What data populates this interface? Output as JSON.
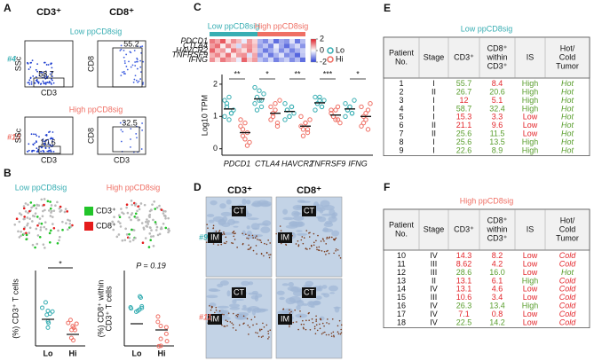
{
  "panel_labels": [
    "A",
    "B",
    "C",
    "D",
    "E",
    "F"
  ],
  "group_colors": [
    "#38aeb3",
    "#ef6f64"
  ],
  "panel_a": {
    "col_titles": [
      "CD3⁺",
      "CD8⁺"
    ],
    "groups": [
      {
        "title": "Low ppCD8sig",
        "sample": "#4"
      },
      {
        "title": "High ppCD8sig",
        "sample": "#15"
      }
    ],
    "plots": [
      {
        "y_label": "SSc",
        "x_label": "CD3",
        "gate": 58.7
      },
      {
        "y_label": "CD8",
        "gate": 55.2
      },
      {
        "y_label": "SSc",
        "x_label": "CD3",
        "gate": 10.6
      },
      {
        "y_label": "CD8",
        "x_label": "CD3",
        "gate": 32.5
      }
    ]
  },
  "panel_b": {
    "titles": [
      "Low ppCD8sig",
      "High ppCD8sig"
    ],
    "legend": [
      {
        "name": "CD3⁺",
        "color": "#22c42a"
      },
      {
        "name": "CD8⁺",
        "color": "#e51c1c"
      }
    ],
    "plots": [
      {
        "y_label": [
          "(%) CD3⁺ T cells"
        ],
        "note": "*",
        "categories": [
          "Lo",
          "Hi"
        ]
      },
      {
        "y_label": [
          "(%) CD8⁺ within",
          "CD3⁺ T cells"
        ],
        "note": "P = 0.19",
        "categories": [
          "Lo",
          "Hi"
        ]
      }
    ]
  },
  "panel_c": {
    "heatmap": {
      "groups": [
        "Low ppCD8sig",
        "High ppCD8sig"
      ],
      "rows": [
        "PDCD1",
        "CTLA4",
        "HAVCR2",
        "TNFRSF9",
        "IFNG"
      ],
      "values": [
        [
          1.2,
          0.8,
          1.5,
          0.3,
          1.0,
          0.6,
          -0.2,
          0.9,
          0.4,
          -0.8,
          -1.2,
          -0.5,
          -1.5,
          -0.9,
          -1.1,
          -0.3,
          -1.4,
          -0.7
        ],
        [
          0.9,
          1.3,
          0.2,
          1.1,
          0.5,
          -0.4,
          0.8,
          1.0,
          0.6,
          -1.0,
          -0.6,
          -1.3,
          -0.2,
          -0.9,
          -1.5,
          -0.8,
          -0.4,
          -1.1
        ],
        [
          1.4,
          0.6,
          0.9,
          -0.1,
          1.2,
          0.7,
          0.3,
          1.1,
          0.5,
          -0.7,
          -1.4,
          -0.9,
          -0.4,
          -1.2,
          -0.6,
          -1.3,
          -0.8,
          -0.5
        ],
        [
          0.7,
          1.1,
          0.4,
          1.3,
          0.2,
          0.9,
          1.0,
          -0.3,
          0.8,
          -1.1,
          -0.5,
          -1.4,
          -0.8,
          -0.3,
          -1.2,
          -0.9,
          -1.6,
          -0.6
        ],
        [
          1.0,
          0.3,
          1.2,
          0.8,
          0.6,
          -0.2,
          1.4,
          0.5,
          0.9,
          -0.6,
          -1.0,
          -0.4,
          -1.3,
          -0.8,
          -0.5,
          -1.2,
          -0.7,
          -1.5
        ]
      ],
      "clim": [
        -2,
        2
      ],
      "cticks": [
        2,
        0,
        -2
      ],
      "colors": [
        "#2b3fd6",
        "#ffffff",
        "#e0202a"
      ]
    },
    "plot": {
      "y_label": "Log10 TPM",
      "categories": [
        "PDCD1",
        "CTLA4",
        "HAVCR2",
        "TNFRSF9",
        "IFNG"
      ],
      "ylim": [
        -0.2,
        2.3
      ],
      "yticks": [
        0,
        1,
        2
      ],
      "significance": [
        "**",
        "*",
        "**",
        "***",
        "*"
      ],
      "series": [
        {
          "name": "Lo",
          "color": "#38aeb3",
          "values": [
            [
              1.5,
              1.3,
              1.6,
              1.1,
              1.2,
              1.0,
              1.4,
              0.9,
              1.1
            ],
            [
              1.9,
              1.6,
              1.5,
              1.3,
              1.7,
              1.4,
              1.2,
              1.8,
              1.5
            ],
            [
              1.4,
              1.2,
              1.0,
              1.3,
              1.1,
              0.9,
              1.2,
              1.0,
              1.3
            ],
            [
              1.6,
              1.4,
              1.5,
              1.3,
              1.5,
              1.2,
              1.4,
              1.6,
              1.3
            ],
            [
              1.4,
              1.2,
              1.3,
              1.1,
              1.5,
              1.0,
              1.2,
              1.3,
              1.1
            ]
          ]
        },
        {
          "name": "Hi",
          "color": "#ef6f64",
          "values": [
            [
              0.9,
              0.6,
              0.3,
              0.5,
              0.2,
              0.7,
              0.4,
              0.8,
              0.1
            ],
            [
              1.3,
              1.0,
              1.2,
              0.8,
              1.5,
              0.9,
              1.1,
              1.4,
              0.7
            ],
            [
              1.0,
              0.6,
              0.8,
              0.5,
              0.9,
              0.7,
              0.4,
              0.8,
              0.6
            ],
            [
              1.2,
              1.0,
              0.9,
              1.3,
              0.8,
              1.1,
              1.0,
              1.2,
              0.9
            ],
            [
              1.3,
              0.8,
              1.1,
              0.6,
              1.4,
              0.7,
              1.0,
              0.9,
              1.2
            ]
          ]
        }
      ]
    }
  },
  "panel_d": {
    "col_titles": [
      "CD3⁺",
      "CD8⁺"
    ],
    "samples": [
      "#9",
      "#11"
    ],
    "regions": [
      "CT",
      "IM"
    ]
  },
  "tables": [
    {
      "title": "Low ppCD8sig",
      "header": [
        [
          "Patient",
          "No."
        ],
        [
          "Stage"
        ],
        [
          "CD3⁺"
        ],
        [
          "CD8⁺",
          "within",
          "CD3⁺"
        ],
        [
          "IS"
        ],
        [
          "Hot/",
          "Cold",
          "Tumor"
        ]
      ],
      "rows": [
        [
          "1",
          "I",
          "55.7",
          "8.4",
          "High",
          "Hot"
        ],
        [
          "2",
          "II",
          "26.7",
          "20.6",
          "High",
          "Hot"
        ],
        [
          "3",
          "I",
          "12",
          "5.1",
          "High",
          "Hot"
        ],
        [
          "4",
          "I",
          "58.7",
          "32.4",
          "High",
          "Hot"
        ],
        [
          "5",
          "I",
          "15.3",
          "3.3",
          "Low",
          "Hot"
        ],
        [
          "6",
          "II",
          "21.1",
          "9.6",
          "Low",
          "Hot"
        ],
        [
          "7",
          "II",
          "25.6",
          "11.5",
          "Low",
          "Hot"
        ],
        [
          "8",
          "I",
          "25.6",
          "13.5",
          "High",
          "Hot"
        ],
        [
          "9",
          "I",
          "22.6",
          "8.9",
          "High",
          "Hot"
        ]
      ],
      "cell_colors": [
        [
          "#5a9e2e",
          "#e3262b",
          "#5a9e2e",
          "#5a9e2e"
        ],
        [
          "#5a9e2e",
          "#5a9e2e",
          "#5a9e2e",
          "#5a9e2e"
        ],
        [
          "#e3262b",
          "#e3262b",
          "#5a9e2e",
          "#5a9e2e"
        ],
        [
          "#5a9e2e",
          "#5a9e2e",
          "#5a9e2e",
          "#5a9e2e"
        ],
        [
          "#e3262b",
          "#e3262b",
          "#e3262b",
          "#5a9e2e"
        ],
        [
          "#e3262b",
          "#e3262b",
          "#e3262b",
          "#5a9e2e"
        ],
        [
          "#5a9e2e",
          "#5a9e2e",
          "#e3262b",
          "#5a9e2e"
        ],
        [
          "#5a9e2e",
          "#5a9e2e",
          "#5a9e2e",
          "#5a9e2e"
        ],
        [
          "#5a9e2e",
          "#5a9e2e",
          "#5a9e2e",
          "#5a9e2e"
        ]
      ]
    },
    {
      "title": "High ppCD8sig",
      "header": [
        [
          "Patient",
          "No."
        ],
        [
          "Stage"
        ],
        [
          "CD3⁺"
        ],
        [
          "CD8⁺",
          "within",
          "CD3⁺"
        ],
        [
          "IS"
        ],
        [
          "Hot/",
          "Cold",
          "Tumor"
        ]
      ],
      "rows": [
        [
          "10",
          "IV",
          "14.3",
          "8.2",
          "Low",
          "Cold"
        ],
        [
          "11",
          "III",
          "8.62",
          "4.2",
          "Low",
          "Cold"
        ],
        [
          "12",
          "III",
          "28.6",
          "16.0",
          "Low",
          "Hot"
        ],
        [
          "13",
          "II",
          "13.1",
          "6.1",
          "High",
          "Cold"
        ],
        [
          "14",
          "IV",
          "13.1",
          "4.6",
          "Low",
          "Cold"
        ],
        [
          "15",
          "III",
          "10.6",
          "3.4",
          "Low",
          "Cold"
        ],
        [
          "16",
          "IV",
          "26.3",
          "13.4",
          "High",
          "Cold"
        ],
        [
          "17",
          "IV",
          "7.1",
          "0.8",
          "Low",
          "Cold"
        ],
        [
          "18",
          "IV",
          "22.5",
          "14.2",
          "Low",
          "Cold"
        ]
      ],
      "cell_colors": [
        [
          "#e3262b",
          "#e3262b",
          "#e3262b",
          "#e3262b"
        ],
        [
          "#e3262b",
          "#e3262b",
          "#e3262b",
          "#e3262b"
        ],
        [
          "#5a9e2e",
          "#5a9e2e",
          "#e3262b",
          "#5a9e2e"
        ],
        [
          "#e3262b",
          "#e3262b",
          "#5a9e2e",
          "#e3262b"
        ],
        [
          "#e3262b",
          "#e3262b",
          "#e3262b",
          "#e3262b"
        ],
        [
          "#e3262b",
          "#e3262b",
          "#e3262b",
          "#e3262b"
        ],
        [
          "#5a9e2e",
          "#5a9e2e",
          "#5a9e2e",
          "#e3262b"
        ],
        [
          "#e3262b",
          "#e3262b",
          "#e3262b",
          "#e3262b"
        ],
        [
          "#5a9e2e",
          "#5a9e2e",
          "#e3262b",
          "#e3262b"
        ]
      ]
    }
  ]
}
